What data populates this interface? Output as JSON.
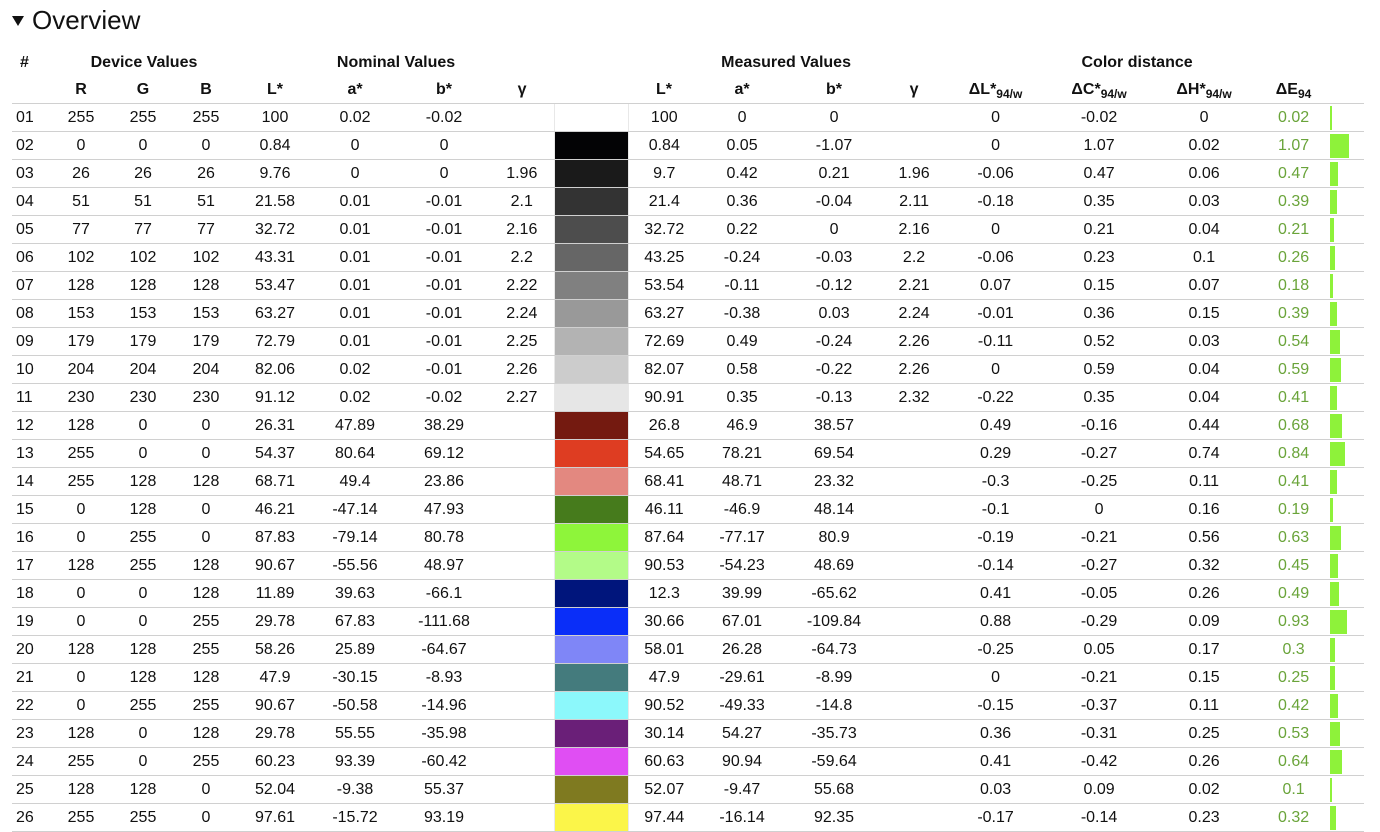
{
  "section": {
    "title": "Overview"
  },
  "groups": {
    "hash": "#",
    "device": "Device Values",
    "nominal": "Nominal Values",
    "measured": "Measured Values",
    "distance": "Color distance"
  },
  "columns": {
    "R": "R",
    "G": "G",
    "B": "B",
    "nL": "L*",
    "na": "a*",
    "nb": "b*",
    "ng": "γ",
    "mL": "L*",
    "ma": "a*",
    "mb": "b*",
    "mg": "γ",
    "dL": "ΔL*",
    "dL_sub": "94/w",
    "dC": "ΔC*",
    "dC_sub": "94/w",
    "dH": "ΔH*",
    "dH_sub": "94/w",
    "dE": "ΔE",
    "dE_sub": "94"
  },
  "rows": [
    {
      "num": "01",
      "R": "255",
      "G": "255",
      "B": "255",
      "nL": "100",
      "na": "0.02",
      "nb": "-0.02",
      "ng": "",
      "color": "#ffffff",
      "mL": "100",
      "ma": "0",
      "mb": "0",
      "mg": "",
      "dL": "0",
      "dC": "-0.02",
      "dH": "0",
      "dE": "0.02"
    },
    {
      "num": "02",
      "R": "0",
      "G": "0",
      "B": "0",
      "nL": "0.84",
      "na": "0",
      "nb": "0",
      "ng": "",
      "color": "#030305",
      "mL": "0.84",
      "ma": "0.05",
      "mb": "-1.07",
      "mg": "",
      "dL": "0",
      "dC": "1.07",
      "dH": "0.02",
      "dE": "1.07"
    },
    {
      "num": "03",
      "R": "26",
      "G": "26",
      "B": "26",
      "nL": "9.76",
      "na": "0",
      "nb": "0",
      "ng": "1.96",
      "color": "#1a1a1a",
      "mL": "9.7",
      "ma": "0.42",
      "mb": "0.21",
      "mg": "1.96",
      "dL": "-0.06",
      "dC": "0.47",
      "dH": "0.06",
      "dE": "0.47"
    },
    {
      "num": "04",
      "R": "51",
      "G": "51",
      "B": "51",
      "nL": "21.58",
      "na": "0.01",
      "nb": "-0.01",
      "ng": "2.1",
      "color": "#333333",
      "mL": "21.4",
      "ma": "0.36",
      "mb": "-0.04",
      "mg": "2.11",
      "dL": "-0.18",
      "dC": "0.35",
      "dH": "0.03",
      "dE": "0.39"
    },
    {
      "num": "05",
      "R": "77",
      "G": "77",
      "B": "77",
      "nL": "32.72",
      "na": "0.01",
      "nb": "-0.01",
      "ng": "2.16",
      "color": "#4d4d4d",
      "mL": "32.72",
      "ma": "0.22",
      "mb": "0",
      "mg": "2.16",
      "dL": "0",
      "dC": "0.21",
      "dH": "0.04",
      "dE": "0.21"
    },
    {
      "num": "06",
      "R": "102",
      "G": "102",
      "B": "102",
      "nL": "43.31",
      "na": "0.01",
      "nb": "-0.01",
      "ng": "2.2",
      "color": "#666666",
      "mL": "43.25",
      "ma": "-0.24",
      "mb": "-0.03",
      "mg": "2.2",
      "dL": "-0.06",
      "dC": "0.23",
      "dH": "0.1",
      "dE": "0.26"
    },
    {
      "num": "07",
      "R": "128",
      "G": "128",
      "B": "128",
      "nL": "53.47",
      "na": "0.01",
      "nb": "-0.01",
      "ng": "2.22",
      "color": "#808080",
      "mL": "53.54",
      "ma": "-0.11",
      "mb": "-0.12",
      "mg": "2.21",
      "dL": "0.07",
      "dC": "0.15",
      "dH": "0.07",
      "dE": "0.18"
    },
    {
      "num": "08",
      "R": "153",
      "G": "153",
      "B": "153",
      "nL": "63.27",
      "na": "0.01",
      "nb": "-0.01",
      "ng": "2.24",
      "color": "#999999",
      "mL": "63.27",
      "ma": "-0.38",
      "mb": "0.03",
      "mg": "2.24",
      "dL": "-0.01",
      "dC": "0.36",
      "dH": "0.15",
      "dE": "0.39"
    },
    {
      "num": "09",
      "R": "179",
      "G": "179",
      "B": "179",
      "nL": "72.79",
      "na": "0.01",
      "nb": "-0.01",
      "ng": "2.25",
      "color": "#b3b3b3",
      "mL": "72.69",
      "ma": "0.49",
      "mb": "-0.24",
      "mg": "2.26",
      "dL": "-0.11",
      "dC": "0.52",
      "dH": "0.03",
      "dE": "0.54"
    },
    {
      "num": "10",
      "R": "204",
      "G": "204",
      "B": "204",
      "nL": "82.06",
      "na": "0.02",
      "nb": "-0.01",
      "ng": "2.26",
      "color": "#cccccc",
      "mL": "82.07",
      "ma": "0.58",
      "mb": "-0.22",
      "mg": "2.26",
      "dL": "0",
      "dC": "0.59",
      "dH": "0.04",
      "dE": "0.59"
    },
    {
      "num": "11",
      "R": "230",
      "G": "230",
      "B": "230",
      "nL": "91.12",
      "na": "0.02",
      "nb": "-0.02",
      "ng": "2.27",
      "color": "#e6e6e6",
      "mL": "90.91",
      "ma": "0.35",
      "mb": "-0.13",
      "mg": "2.32",
      "dL": "-0.22",
      "dC": "0.35",
      "dH": "0.04",
      "dE": "0.41"
    },
    {
      "num": "12",
      "R": "128",
      "G": "0",
      "B": "0",
      "nL": "26.31",
      "na": "47.89",
      "nb": "38.29",
      "ng": "",
      "color": "#741a10",
      "mL": "26.8",
      "ma": "46.9",
      "mb": "38.57",
      "mg": "",
      "dL": "0.49",
      "dC": "-0.16",
      "dH": "0.44",
      "dE": "0.68"
    },
    {
      "num": "13",
      "R": "255",
      "G": "0",
      "B": "0",
      "nL": "54.37",
      "na": "80.64",
      "nb": "69.12",
      "ng": "",
      "color": "#de3d22",
      "mL": "54.65",
      "ma": "78.21",
      "mb": "69.54",
      "mg": "",
      "dL": "0.29",
      "dC": "-0.27",
      "dH": "0.74",
      "dE": "0.84"
    },
    {
      "num": "14",
      "R": "255",
      "G": "128",
      "B": "128",
      "nL": "68.71",
      "na": "49.4",
      "nb": "23.86",
      "ng": "",
      "color": "#e38880",
      "mL": "68.41",
      "ma": "48.71",
      "mb": "23.32",
      "mg": "",
      "dL": "-0.3",
      "dC": "-0.25",
      "dH": "0.11",
      "dE": "0.41"
    },
    {
      "num": "15",
      "R": "0",
      "G": "128",
      "B": "0",
      "nL": "46.21",
      "na": "-47.14",
      "nb": "47.93",
      "ng": "",
      "color": "#467b1c",
      "mL": "46.11",
      "ma": "-46.9",
      "mb": "48.14",
      "mg": "",
      "dL": "-0.1",
      "dC": "0",
      "dH": "0.16",
      "dE": "0.19"
    },
    {
      "num": "16",
      "R": "0",
      "G": "255",
      "B": "0",
      "nL": "87.83",
      "na": "-79.14",
      "nb": "80.78",
      "ng": "",
      "color": "#8ef53a",
      "mL": "87.64",
      "ma": "-77.17",
      "mb": "80.9",
      "mg": "",
      "dL": "-0.19",
      "dC": "-0.21",
      "dH": "0.56",
      "dE": "0.63"
    },
    {
      "num": "17",
      "R": "128",
      "G": "255",
      "B": "128",
      "nL": "90.67",
      "na": "-55.56",
      "nb": "48.97",
      "ng": "",
      "color": "#b3fb88",
      "mL": "90.53",
      "ma": "-54.23",
      "mb": "48.69",
      "mg": "",
      "dL": "-0.14",
      "dC": "-0.27",
      "dH": "0.32",
      "dE": "0.45"
    },
    {
      "num": "18",
      "R": "0",
      "G": "0",
      "B": "128",
      "nL": "11.89",
      "na": "39.63",
      "nb": "-66.1",
      "ng": "",
      "color": "#00157c",
      "mL": "12.3",
      "ma": "39.99",
      "mb": "-65.62",
      "mg": "",
      "dL": "0.41",
      "dC": "-0.05",
      "dH": "0.26",
      "dE": "0.49"
    },
    {
      "num": "19",
      "R": "0",
      "G": "0",
      "B": "255",
      "nL": "29.78",
      "na": "67.83",
      "nb": "-111.68",
      "ng": "",
      "color": "#0a2ef8",
      "mL": "30.66",
      "ma": "67.01",
      "mb": "-109.84",
      "mg": "",
      "dL": "0.88",
      "dC": "-0.29",
      "dH": "0.09",
      "dE": "0.93"
    },
    {
      "num": "20",
      "R": "128",
      "G": "128",
      "B": "255",
      "nL": "58.26",
      "na": "25.89",
      "nb": "-64.67",
      "ng": "",
      "color": "#7f86f7",
      "mL": "58.01",
      "ma": "26.28",
      "mb": "-64.73",
      "mg": "",
      "dL": "-0.25",
      "dC": "0.05",
      "dH": "0.17",
      "dE": "0.3"
    },
    {
      "num": "21",
      "R": "0",
      "G": "128",
      "B": "128",
      "nL": "47.9",
      "na": "-30.15",
      "nb": "-8.93",
      "ng": "",
      "color": "#447b7d",
      "mL": "47.9",
      "ma": "-29.61",
      "mb": "-8.99",
      "mg": "",
      "dL": "0",
      "dC": "-0.21",
      "dH": "0.15",
      "dE": "0.25"
    },
    {
      "num": "22",
      "R": "0",
      "G": "255",
      "B": "255",
      "nL": "90.67",
      "na": "-50.58",
      "nb": "-14.96",
      "ng": "",
      "color": "#8cf8fb",
      "mL": "90.52",
      "ma": "-49.33",
      "mb": "-14.8",
      "mg": "",
      "dL": "-0.15",
      "dC": "-0.37",
      "dH": "0.11",
      "dE": "0.42"
    },
    {
      "num": "23",
      "R": "128",
      "G": "0",
      "B": "128",
      "nL": "29.78",
      "na": "55.55",
      "nb": "-35.98",
      "ng": "",
      "color": "#6a1f78",
      "mL": "30.14",
      "ma": "54.27",
      "mb": "-35.73",
      "mg": "",
      "dL": "0.36",
      "dC": "-0.31",
      "dH": "0.25",
      "dE": "0.53"
    },
    {
      "num": "24",
      "R": "255",
      "G": "0",
      "B": "255",
      "nL": "60.23",
      "na": "93.39",
      "nb": "-60.42",
      "ng": "",
      "color": "#e04ef3",
      "mL": "60.63",
      "ma": "90.94",
      "mb": "-59.64",
      "mg": "",
      "dL": "0.41",
      "dC": "-0.42",
      "dH": "0.26",
      "dE": "0.64"
    },
    {
      "num": "25",
      "R": "128",
      "G": "128",
      "B": "0",
      "nL": "52.04",
      "na": "-9.38",
      "nb": "55.37",
      "ng": "",
      "color": "#7f7a20",
      "mL": "52.07",
      "ma": "-9.47",
      "mb": "55.68",
      "mg": "",
      "dL": "0.03",
      "dC": "0.09",
      "dH": "0.02",
      "dE": "0.1"
    },
    {
      "num": "26",
      "R": "255",
      "G": "255",
      "B": "0",
      "nL": "97.61",
      "na": "-15.72",
      "nb": "93.19",
      "ng": "",
      "color": "#fbf549",
      "mL": "97.44",
      "ma": "-16.14",
      "mb": "92.35",
      "mg": "",
      "dL": "-0.17",
      "dC": "-0.14",
      "dH": "0.23",
      "dE": "0.32"
    }
  ],
  "colors": {
    "de_text": "#6aa43a",
    "de_bar": "#8ef23a",
    "row_line": "#d0d0d0"
  }
}
